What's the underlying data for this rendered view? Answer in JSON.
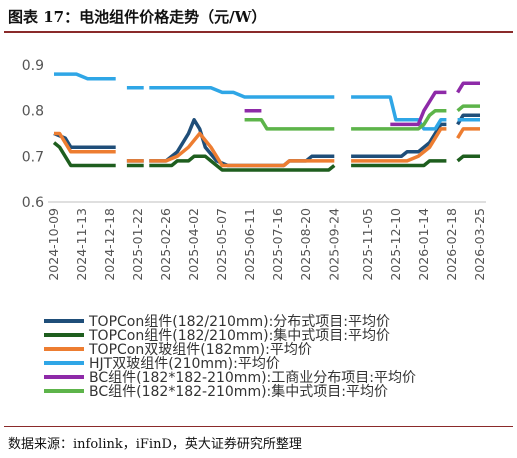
{
  "header": {
    "title": "图表 17：电池组件价格走势（元/W）"
  },
  "footer": {
    "source": "数据来源：infolink，iFinD，英大证券研究所整理"
  },
  "chart_data": {
    "type": "line",
    "title": "图表 17：电池组件价格走势（元/W）",
    "xlabel": "",
    "ylabel": "",
    "ylim": [
      0.6,
      0.9
    ],
    "yticks": [
      "0.6",
      "0.7",
      "0.8",
      "0.9"
    ],
    "grid": false,
    "legend_position": "bottom",
    "x_labels": [
      "2024-10-09",
      "2024-11-13",
      "2024-12-18",
      "2025-01-22",
      "2025-02-26",
      "2025-04-02",
      "2025-05-07",
      "2025-06-11",
      "2025-07-16",
      "2025-08-20",
      "2025-09-24",
      "2025-11-05",
      "2025-12-10",
      "2026-01-14",
      "2026-02-18",
      "2026-03-25"
    ],
    "series": [
      {
        "name": "TOPCon组件(182/210mm):分布式项目:平均价",
        "color": "#1f4e79",
        "width": 3.5,
        "segments": [
          [
            [
              "2024-10-09",
              0.75
            ],
            [
              "2024-10-23",
              0.74
            ],
            [
              "2024-10-30",
              0.72
            ],
            [
              "2024-12-25",
              0.72
            ]
          ],
          [
            [
              "2025-01-08",
              0.69
            ],
            [
              "2025-01-29",
              0.69
            ]
          ],
          [
            [
              "2025-02-05",
              0.69
            ],
            [
              "2025-02-26",
              0.69
            ],
            [
              "2025-03-12",
              0.71
            ],
            [
              "2025-03-26",
              0.75
            ],
            [
              "2025-04-02",
              0.78
            ],
            [
              "2025-04-09",
              0.76
            ],
            [
              "2025-04-16",
              0.72
            ],
            [
              "2025-04-30",
              0.69
            ],
            [
              "2025-05-14",
              0.68
            ],
            [
              "2025-05-21",
              0.68
            ],
            [
              "2025-07-23",
              0.68
            ],
            [
              "2025-07-30",
              0.69
            ],
            [
              "2025-08-20",
              0.69
            ],
            [
              "2025-08-27",
              0.7
            ],
            [
              "2025-09-24",
              0.7
            ]
          ],
          [
            [
              "2025-10-15",
              0.7
            ],
            [
              "2025-11-05",
              0.7
            ],
            [
              "2025-12-17",
              0.7
            ],
            [
              "2025-12-24",
              0.71
            ],
            [
              "2026-01-07",
              0.71
            ],
            [
              "2026-01-21",
              0.73
            ],
            [
              "2026-01-28",
              0.75
            ],
            [
              "2026-02-04",
              0.77
            ],
            [
              "2026-02-11",
              0.77
            ]
          ],
          [
            [
              "2026-02-25",
              0.77
            ],
            [
              "2026-03-04",
              0.79
            ],
            [
              "2026-03-25",
              0.79
            ]
          ]
        ]
      },
      {
        "name": "TOPCon组件(182/210mm):集中式项目:平均价",
        "color": "#1e5e1e",
        "width": 3.5,
        "segments": [
          [
            [
              "2024-10-09",
              0.73
            ],
            [
              "2024-10-16",
              0.72
            ],
            [
              "2024-10-30",
              0.68
            ],
            [
              "2024-12-25",
              0.68
            ]
          ],
          [
            [
              "2025-01-08",
              0.68
            ],
            [
              "2025-01-29",
              0.68
            ]
          ],
          [
            [
              "2025-02-05",
              0.68
            ],
            [
              "2025-03-05",
              0.68
            ],
            [
              "2025-03-12",
              0.69
            ],
            [
              "2025-03-26",
              0.69
            ],
            [
              "2025-04-02",
              0.7
            ],
            [
              "2025-04-16",
              0.7
            ],
            [
              "2025-04-23",
              0.69
            ],
            [
              "2025-05-07",
              0.67
            ],
            [
              "2025-09-17",
              0.67
            ],
            [
              "2025-09-24",
              0.68
            ]
          ],
          [
            [
              "2025-10-15",
              0.68
            ],
            [
              "2026-01-14",
              0.68
            ],
            [
              "2026-01-21",
              0.69
            ],
            [
              "2026-02-11",
              0.69
            ]
          ],
          [
            [
              "2026-02-25",
              0.69
            ],
            [
              "2026-03-04",
              0.7
            ],
            [
              "2026-03-25",
              0.7
            ]
          ]
        ]
      },
      {
        "name": "TOPCon双玻组件(182mm):平均价",
        "color": "#ed7d31",
        "width": 3.5,
        "segments": [
          [
            [
              "2024-10-09",
              0.75
            ],
            [
              "2024-10-16",
              0.75
            ],
            [
              "2024-10-30",
              0.71
            ],
            [
              "2024-12-25",
              0.71
            ]
          ],
          [
            [
              "2025-01-08",
              0.69
            ],
            [
              "2025-01-29",
              0.69
            ]
          ],
          [
            [
              "2025-02-05",
              0.69
            ],
            [
              "2025-02-26",
              0.69
            ],
            [
              "2025-03-12",
              0.7
            ],
            [
              "2025-03-26",
              0.72
            ],
            [
              "2025-04-09",
              0.75
            ],
            [
              "2025-04-23",
              0.72
            ],
            [
              "2025-05-07",
              0.68
            ],
            [
              "2025-07-23",
              0.68
            ],
            [
              "2025-07-30",
              0.69
            ],
            [
              "2025-09-24",
              0.69
            ]
          ],
          [
            [
              "2025-10-15",
              0.69
            ],
            [
              "2025-12-24",
              0.69
            ],
            [
              "2026-01-07",
              0.7
            ],
            [
              "2026-01-21",
              0.72
            ],
            [
              "2026-01-28",
              0.74
            ],
            [
              "2026-02-04",
              0.76
            ],
            [
              "2026-02-11",
              0.76
            ]
          ],
          [
            [
              "2026-02-25",
              0.74
            ],
            [
              "2026-03-04",
              0.76
            ],
            [
              "2026-03-25",
              0.76
            ]
          ]
        ]
      },
      {
        "name": "HJT双玻组件(210mm):平均价",
        "color": "#2fa6e6",
        "width": 3.5,
        "segments": [
          [
            [
              "2024-10-09",
              0.88
            ],
            [
              "2024-11-06",
              0.88
            ],
            [
              "2024-11-20",
              0.87
            ],
            [
              "2024-12-25",
              0.87
            ]
          ],
          [
            [
              "2025-01-08",
              0.85
            ],
            [
              "2025-01-29",
              0.85
            ]
          ],
          [
            [
              "2025-02-05",
              0.85
            ],
            [
              "2025-04-23",
              0.85
            ],
            [
              "2025-05-07",
              0.84
            ],
            [
              "2025-05-21",
              0.84
            ],
            [
              "2025-06-04",
              0.83
            ],
            [
              "2025-09-24",
              0.83
            ]
          ],
          [
            [
              "2025-10-15",
              0.83
            ],
            [
              "2025-12-03",
              0.83
            ],
            [
              "2025-12-10",
              0.78
            ],
            [
              "2026-01-07",
              0.78
            ],
            [
              "2026-01-14",
              0.76
            ],
            [
              "2026-01-28",
              0.76
            ],
            [
              "2026-02-04",
              0.78
            ],
            [
              "2026-02-11",
              0.78
            ]
          ],
          [
            [
              "2026-02-25",
              0.78
            ],
            [
              "2026-03-25",
              0.78
            ]
          ]
        ]
      },
      {
        "name": "BC组件(182*182-210mm):工商业分布项目:平均价",
        "color": "#8e2aa8",
        "width": 3.5,
        "segments": [
          [
            [
              "2025-06-04",
              0.8
            ],
            [
              "2025-06-25",
              0.8
            ]
          ],
          [
            [
              "2025-12-03",
              0.77
            ],
            [
              "2026-01-07",
              0.77
            ],
            [
              "2026-01-14",
              0.8
            ],
            [
              "2026-01-21",
              0.82
            ],
            [
              "2026-01-28",
              0.84
            ],
            [
              "2026-02-11",
              0.84
            ]
          ],
          [
            [
              "2026-02-25",
              0.84
            ],
            [
              "2026-03-04",
              0.86
            ],
            [
              "2026-03-25",
              0.86
            ]
          ]
        ]
      },
      {
        "name": "BC组件(182*182-210mm):集中式项目:平均价",
        "color": "#5db44a",
        "width": 3.5,
        "segments": [
          [
            [
              "2025-06-04",
              0.78
            ],
            [
              "2025-06-25",
              0.78
            ],
            [
              "2025-07-02",
              0.76
            ],
            [
              "2025-09-24",
              0.76
            ]
          ],
          [
            [
              "2025-10-15",
              0.76
            ],
            [
              "2026-01-07",
              0.76
            ],
            [
              "2026-01-14",
              0.77
            ],
            [
              "2026-01-21",
              0.79
            ],
            [
              "2026-01-28",
              0.8
            ],
            [
              "2026-02-11",
              0.8
            ]
          ],
          [
            [
              "2026-02-25",
              0.8
            ],
            [
              "2026-03-04",
              0.81
            ],
            [
              "2026-03-25",
              0.81
            ]
          ]
        ]
      }
    ]
  }
}
